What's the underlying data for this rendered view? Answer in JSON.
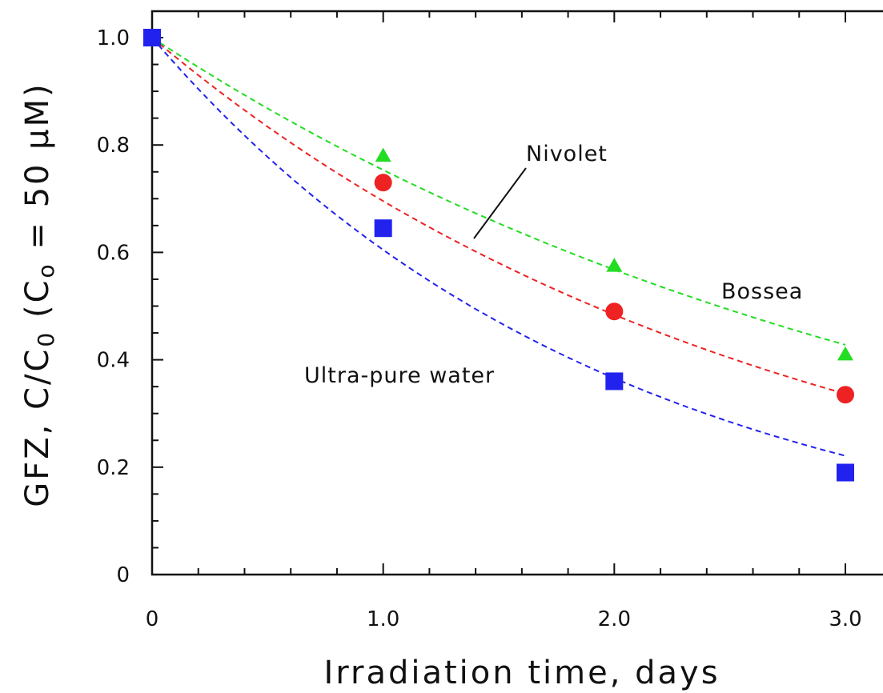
{
  "chart_data": {
    "type": "scatter",
    "title": "",
    "xlabel": "Irradiation time, days",
    "ylabel_parts": {
      "lead": "GFZ, C/C",
      "sub0": "0",
      "mid": " (C",
      "sub1": "o",
      "tail": " = 50 μM)"
    },
    "xlim": [
      0,
      3.0
    ],
    "ylim": [
      0,
      1.0
    ],
    "xticks": [
      0,
      1.0,
      2.0,
      3.0
    ],
    "xtick_labels": [
      "0",
      "1.0",
      "2.0",
      "3.0"
    ],
    "yticks": [
      0,
      0.2,
      0.4,
      0.6,
      0.8,
      1.0
    ],
    "ytick_labels": [
      "0",
      "0.2",
      "0.4",
      "0.6",
      "0.8",
      "1.0"
    ],
    "grid": false,
    "series": [
      {
        "name": "Bossea",
        "marker": "triangle",
        "color": "#22dd22",
        "x": [
          0,
          1.0,
          2.0,
          3.0
        ],
        "y": [
          1.0,
          0.78,
          0.575,
          0.41
        ],
        "fit_k": 0.283
      },
      {
        "name": "Nivolet",
        "marker": "circle",
        "color": "#ee2222",
        "x": [
          0,
          1.0,
          2.0,
          3.0
        ],
        "y": [
          1.0,
          0.73,
          0.49,
          0.335
        ],
        "fit_k": 0.363
      },
      {
        "name": "Ultra-pure water",
        "marker": "square",
        "color": "#2222ee",
        "x": [
          0,
          1.0,
          2.0,
          3.0
        ],
        "y": [
          1.0,
          0.645,
          0.36,
          0.19
        ],
        "fit_k": 0.503
      }
    ],
    "annotations": {
      "nivolet": "Nivolet",
      "bossea": "Bossea",
      "ultra": "Ultra-pure water"
    }
  }
}
